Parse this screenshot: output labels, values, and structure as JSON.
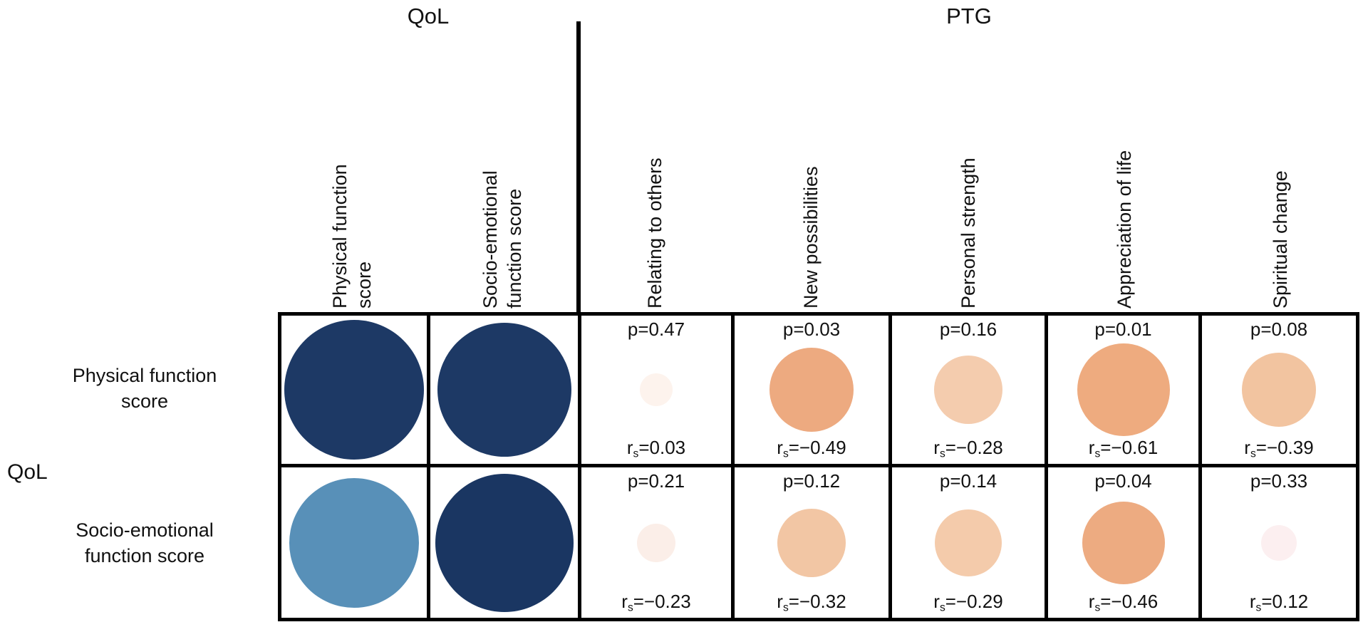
{
  "header": {
    "qol_label": "QoL",
    "ptg_label": "PTG"
  },
  "side_label": "QoL",
  "chart_data": {
    "type": "heatmap",
    "subtype": "correlation_bubble_matrix",
    "statistic": "Spearman correlation (rs) with p-values; bubble size and color encode correlation strength",
    "value_labels": {
      "p_prefix": "p=",
      "r_prefix": "rs="
    },
    "row_group_label": "QoL",
    "column_groups": [
      {
        "label": "QoL",
        "columns": [
          "Physical function\nscore",
          "Socio-emotional\nfunction score"
        ]
      },
      {
        "label": "PTG",
        "columns": [
          "Relating to others",
          "New possibilities",
          "Personal strength",
          "Appreciation of life",
          "Spiritual change"
        ]
      }
    ],
    "rows": [
      {
        "label": "Physical function\nscore",
        "cells": [
          {
            "kind": "self",
            "color": "#1d3965",
            "diameter": 196
          },
          {
            "kind": "self",
            "color": "#1d3965",
            "diameter": 188
          },
          {
            "kind": "corr",
            "r": 0.03,
            "p": 0.47,
            "color": "#fdf3ed",
            "diameter": 46
          },
          {
            "kind": "corr",
            "r": -0.49,
            "p": 0.03,
            "color": "#edaa80",
            "diameter": 118
          },
          {
            "kind": "corr",
            "r": -0.28,
            "p": 0.16,
            "color": "#f4ccae",
            "diameter": 96
          },
          {
            "kind": "corr",
            "r": -0.61,
            "p": 0.01,
            "color": "#eeab7f",
            "diameter": 130
          },
          {
            "kind": "corr",
            "r": -0.39,
            "p": 0.08,
            "color": "#f2c4a0",
            "diameter": 104
          }
        ]
      },
      {
        "label": "Socio-emotional\nfunction score",
        "cells": [
          {
            "kind": "self",
            "color": "#5890b8",
            "diameter": 182
          },
          {
            "kind": "self",
            "color": "#1a3662",
            "diameter": 194
          },
          {
            "kind": "corr",
            "r": -0.23,
            "p": 0.21,
            "color": "#fbeee8",
            "diameter": 54
          },
          {
            "kind": "corr",
            "r": -0.32,
            "p": 0.12,
            "color": "#f2c6a4",
            "diameter": 96
          },
          {
            "kind": "corr",
            "r": -0.29,
            "p": 0.14,
            "color": "#f4cbab",
            "diameter": 94
          },
          {
            "kind": "corr",
            "r": -0.46,
            "p": 0.04,
            "color": "#edab81",
            "diameter": 116
          },
          {
            "kind": "corr",
            "r": 0.12,
            "p": 0.33,
            "color": "#fceff0",
            "diameter": 50
          }
        ]
      }
    ]
  }
}
